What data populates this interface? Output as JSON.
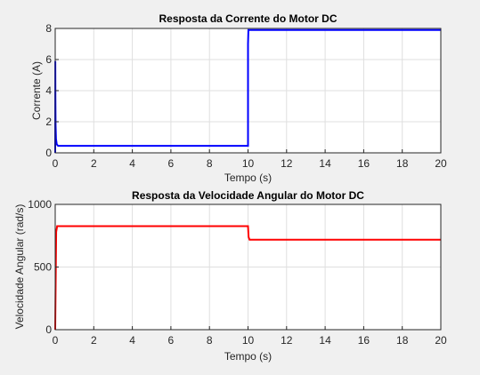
{
  "chart_data": [
    {
      "type": "line",
      "title": "Resposta da Corrente do Motor DC",
      "xlabel": "Tempo (s)",
      "ylabel": "Corrente (A)",
      "xlim": [
        0,
        20
      ],
      "ylim": [
        0,
        8
      ],
      "xticks": [
        0,
        2,
        4,
        6,
        8,
        10,
        12,
        14,
        16,
        18,
        20
      ],
      "yticks": [
        0,
        2,
        4,
        6,
        8
      ],
      "grid": true,
      "series": [
        {
          "color": "#0000ff",
          "x": [
            0,
            0.005,
            0.01,
            0.02,
            0.04,
            0.08,
            0.15,
            0.3,
            10.0,
            10.0,
            10.02,
            20
          ],
          "y": [
            0,
            5.9,
            3.5,
            1.8,
            0.9,
            0.55,
            0.45,
            0.45,
            0.45,
            7.0,
            7.9,
            7.9
          ]
        }
      ]
    },
    {
      "type": "line",
      "title": "Resposta da Velocidade Angular do Motor DC",
      "xlabel": "Tempo (s)",
      "ylabel": "Velocidade Angular (rad/s)",
      "xlim": [
        0,
        20
      ],
      "ylim": [
        0,
        1000
      ],
      "xticks": [
        0,
        2,
        4,
        6,
        8,
        10,
        12,
        14,
        16,
        18,
        20
      ],
      "yticks": [
        0,
        500,
        1000
      ],
      "grid": true,
      "series": [
        {
          "color": "#ff0000",
          "x": [
            0,
            0.05,
            0.1,
            10.0,
            10.03,
            10.08,
            20
          ],
          "y": [
            0,
            780,
            826,
            826,
            740,
            718,
            718
          ]
        }
      ]
    }
  ]
}
